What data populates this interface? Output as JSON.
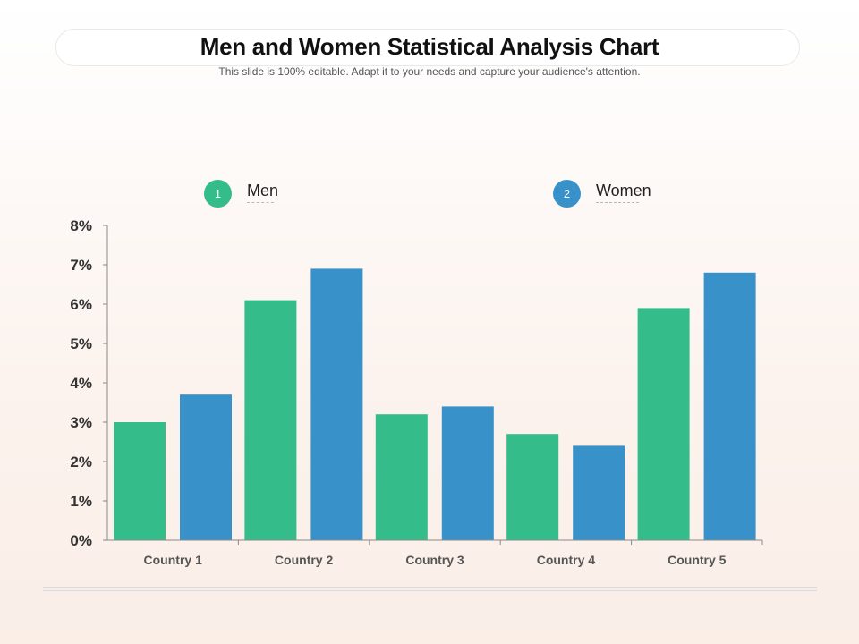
{
  "slide": {
    "title": "Men and Women Statistical Analysis Chart",
    "subtitle": "This slide is 100% editable. Adapt it to your needs and capture your audience's attention."
  },
  "legend": [
    {
      "number": "1",
      "label": "Men",
      "color": "#35bc8b"
    },
    {
      "number": "2",
      "label": "Women",
      "color": "#3891c9"
    }
  ],
  "chart_data": {
    "type": "bar",
    "title": "Men and Women Statistical Analysis Chart",
    "xlabel": "",
    "ylabel": "",
    "categories": [
      "Country 1",
      "Country 2",
      "Country 3",
      "Country 4",
      "Country 5"
    ],
    "series": [
      {
        "name": "Men",
        "color": "#35bc8b",
        "values": [
          3.0,
          6.1,
          3.2,
          2.7,
          5.9
        ]
      },
      {
        "name": "Women",
        "color": "#3891c9",
        "values": [
          3.7,
          6.9,
          3.4,
          2.4,
          6.8
        ]
      }
    ],
    "ylim": [
      0,
      8
    ],
    "yticks": [
      0,
      1,
      2,
      3,
      4,
      5,
      6,
      7,
      8
    ],
    "ytick_labels": [
      "0%",
      "1%",
      "2%",
      "3%",
      "4%",
      "5%",
      "6%",
      "7%",
      "8%"
    ],
    "grid": false,
    "legend_position": "top"
  }
}
